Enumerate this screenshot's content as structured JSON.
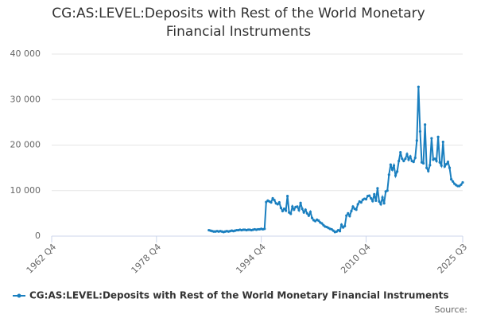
{
  "chart_data": {
    "type": "line",
    "title": "CG:AS:LEVEL:Deposits with Rest of the World Monetary Financial Instruments",
    "source": "Source:",
    "x": [
      "1986 Q4",
      "1987 Q1",
      "1987 Q2",
      "1987 Q3",
      "1987 Q4",
      "1988 Q1",
      "1988 Q2",
      "1988 Q3",
      "1988 Q4",
      "1989 Q1",
      "1989 Q2",
      "1989 Q3",
      "1989 Q4",
      "1990 Q1",
      "1990 Q2",
      "1990 Q3",
      "1990 Q4",
      "1991 Q1",
      "1991 Q2",
      "1991 Q3",
      "1991 Q4",
      "1992 Q1",
      "1992 Q2",
      "1992 Q3",
      "1992 Q4",
      "1993 Q1",
      "1993 Q2",
      "1993 Q3",
      "1993 Q4",
      "1994 Q1",
      "1994 Q2",
      "1994 Q3",
      "1994 Q4",
      "1995 Q1",
      "1995 Q2",
      "1995 Q3",
      "1995 Q4",
      "1996 Q1",
      "1996 Q2",
      "1996 Q3",
      "1996 Q4",
      "1997 Q1",
      "1997 Q2",
      "1997 Q3",
      "1997 Q4",
      "1998 Q1",
      "1998 Q2",
      "1998 Q3",
      "1998 Q4",
      "1999 Q1",
      "1999 Q2",
      "1999 Q3",
      "1999 Q4",
      "2000 Q1",
      "2000 Q2",
      "2000 Q3",
      "2000 Q4",
      "2001 Q1",
      "2001 Q2",
      "2001 Q3",
      "2001 Q4",
      "2002 Q1",
      "2002 Q2",
      "2002 Q3",
      "2002 Q4",
      "2003 Q1",
      "2003 Q2",
      "2003 Q3",
      "2003 Q4",
      "2004 Q1",
      "2004 Q2",
      "2004 Q3",
      "2004 Q4",
      "2005 Q1",
      "2005 Q2",
      "2005 Q3",
      "2005 Q4",
      "2006 Q1",
      "2006 Q2",
      "2006 Q3",
      "2006 Q4",
      "2007 Q1",
      "2007 Q2",
      "2007 Q3",
      "2007 Q4",
      "2008 Q1",
      "2008 Q2",
      "2008 Q3",
      "2008 Q4",
      "2009 Q1",
      "2009 Q2",
      "2009 Q3",
      "2009 Q4",
      "2010 Q1",
      "2010 Q2",
      "2010 Q3",
      "2010 Q4",
      "2011 Q1",
      "2011 Q2",
      "2011 Q3",
      "2011 Q4",
      "2012 Q1",
      "2012 Q2",
      "2012 Q3",
      "2012 Q4",
      "2013 Q1",
      "2013 Q2",
      "2013 Q3",
      "2013 Q4",
      "2014 Q1",
      "2014 Q2",
      "2014 Q3",
      "2014 Q4",
      "2015 Q1",
      "2015 Q2",
      "2015 Q3",
      "2015 Q4",
      "2016 Q1",
      "2016 Q2",
      "2016 Q3",
      "2016 Q4",
      "2017 Q1",
      "2017 Q2",
      "2017 Q3",
      "2017 Q4",
      "2018 Q1",
      "2018 Q2",
      "2018 Q3",
      "2018 Q4",
      "2019 Q1",
      "2019 Q2",
      "2019 Q3",
      "2019 Q4",
      "2020 Q1",
      "2020 Q2",
      "2020 Q3",
      "2020 Q4",
      "2021 Q1",
      "2021 Q2",
      "2021 Q3",
      "2021 Q4",
      "2022 Q1",
      "2022 Q2",
      "2022 Q3",
      "2022 Q4",
      "2023 Q1",
      "2023 Q2",
      "2023 Q3",
      "2023 Q4",
      "2024 Q1",
      "2024 Q2",
      "2024 Q3",
      "2024 Q4",
      "2025 Q1",
      "2025 Q2",
      "2025 Q3"
    ],
    "series": [
      {
        "name": "CG:AS:LEVEL:Deposits with Rest of the World Monetary Financial Instruments",
        "color": "#1a7fbf",
        "values": [
          1300,
          1200,
          1100,
          1000,
          1000,
          1100,
          1000,
          1100,
          1000,
          900,
          1000,
          1100,
          1000,
          1100,
          1200,
          1100,
          1200,
          1300,
          1300,
          1400,
          1300,
          1400,
          1400,
          1300,
          1400,
          1400,
          1300,
          1400,
          1500,
          1400,
          1500,
          1500,
          1600,
          1500,
          1600,
          7500,
          7800,
          7600,
          7400,
          8300,
          7900,
          7200,
          7000,
          7400,
          6200,
          5500,
          6000,
          5600,
          8800,
          5200,
          4900,
          6500,
          5800,
          6400,
          6500,
          5700,
          7300,
          6000,
          5200,
          5800,
          5000,
          4500,
          5300,
          4000,
          3500,
          3300,
          3600,
          3400,
          3000,
          2800,
          2400,
          2100,
          2000,
          1800,
          1600,
          1500,
          1200,
          900,
          1000,
          1300,
          1100,
          2500,
          1900,
          2200,
          4500,
          5000,
          4400,
          5500,
          6500,
          6000,
          5800,
          7000,
          7600,
          7400,
          8000,
          8200,
          8100,
          8800,
          8900,
          8300,
          7700,
          9200,
          7800,
          10500,
          7600,
          7000,
          8500,
          7200,
          9800,
          10000,
          13500,
          15700,
          14600,
          15500,
          13300,
          14200,
          16500,
          18400,
          17000,
          16500,
          17000,
          18000,
          16800,
          17500,
          16500,
          16300,
          17200,
          21000,
          32800,
          23000,
          16200,
          16000,
          24500,
          15000,
          14300,
          15600,
          21500,
          16800,
          17000,
          16500,
          21800,
          16200,
          15500,
          20700,
          15300,
          15800,
          16300,
          15000,
          12500,
          12000,
          11500,
          11200,
          11000,
          11000,
          11300,
          11800
        ]
      }
    ],
    "xlim": [
      "1962 Q4",
      "2025 Q3"
    ],
    "xticks": [
      "1962 Q4",
      "1978 Q4",
      "1994 Q4",
      "2010 Q4",
      "2025 Q3"
    ],
    "ylim": [
      0,
      40000
    ],
    "yticks": [
      0,
      {
        "value": 10000,
        "label": "10 000"
      },
      {
        "value": 20000,
        "label": "20 000"
      },
      {
        "value": 30000,
        "label": "30 000"
      },
      {
        "value": 40000,
        "label": "40 000"
      }
    ],
    "grid": true
  }
}
